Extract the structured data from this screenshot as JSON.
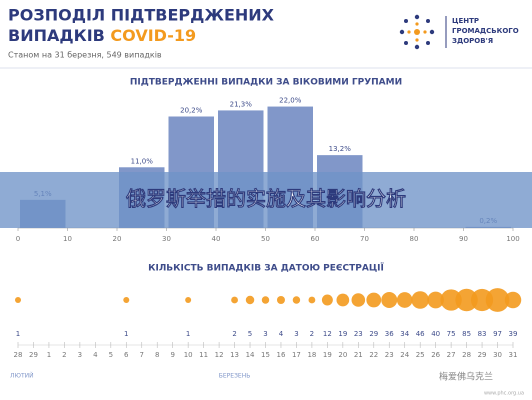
{
  "header": {
    "title_line1": "РОЗПОДІЛ ПІДТВЕРДЖЕНИХ",
    "title_line2": "ВИПАДКІВ",
    "title_highlight": "COVID-19",
    "subtitle": "Станом на 31 березня, 549 випадків"
  },
  "logo": {
    "line1": "ЦЕНТР",
    "line2": "ГРОМАДСЬКОГО",
    "line3": "ЗДОРОВ'Я"
  },
  "banner": {
    "text": "俄罗斯举措的实施及其影响分析"
  },
  "watermark": {
    "text": "梅爱佛乌克兰",
    "url": "www.phc.org.ua"
  },
  "chart_data": [
    {
      "type": "histogram",
      "title": "ПІДТВЕРДЖЕННІ ВИПАДКИ ЗА ВІКОВИМИ ГРУПАМИ",
      "bins": [
        0,
        10,
        20,
        30,
        40,
        50,
        60,
        70,
        80,
        90,
        100
      ],
      "values": [
        5.1,
        null,
        11.0,
        20.2,
        21.3,
        22.0,
        13.2,
        null,
        null,
        0.2
      ],
      "value_labels": [
        "5,1%",
        null,
        "11,0%",
        "20,2%",
        "21,3%",
        "22,0%",
        "13,2%",
        null,
        null,
        "0,2%"
      ],
      "color": "#8197c9",
      "xlim": [
        0,
        100
      ],
      "xticks": [
        0,
        10,
        20,
        30,
        40,
        50,
        60,
        70,
        80,
        90,
        100
      ],
      "ylim": [
        0,
        25
      ]
    },
    {
      "type": "bubble",
      "title": "КІЛЬКІСТЬ ВИПАДКІВ ЗА ДАТОЮ РЕЄСТРАЦІЇ",
      "categories": [
        "28",
        "29",
        "1",
        "2",
        "3",
        "4",
        "5",
        "6",
        "7",
        "8",
        "9",
        "10",
        "11",
        "12",
        "13",
        "14",
        "15",
        "16",
        "17",
        "18",
        "19",
        "20",
        "21",
        "22",
        "23",
        "24",
        "25",
        "26",
        "27",
        "28",
        "29",
        "30",
        "31"
      ],
      "values": [
        1,
        null,
        null,
        null,
        null,
        null,
        null,
        1,
        null,
        null,
        null,
        1,
        null,
        null,
        2,
        5,
        3,
        4,
        3,
        2,
        12,
        19,
        23,
        29,
        36,
        34,
        46,
        40,
        75,
        85,
        83,
        97,
        39
      ],
      "months": [
        "ЛЮТИЙ",
        "БЕРЕЗЕНЬ"
      ],
      "color": "#f39a1e"
    }
  ]
}
